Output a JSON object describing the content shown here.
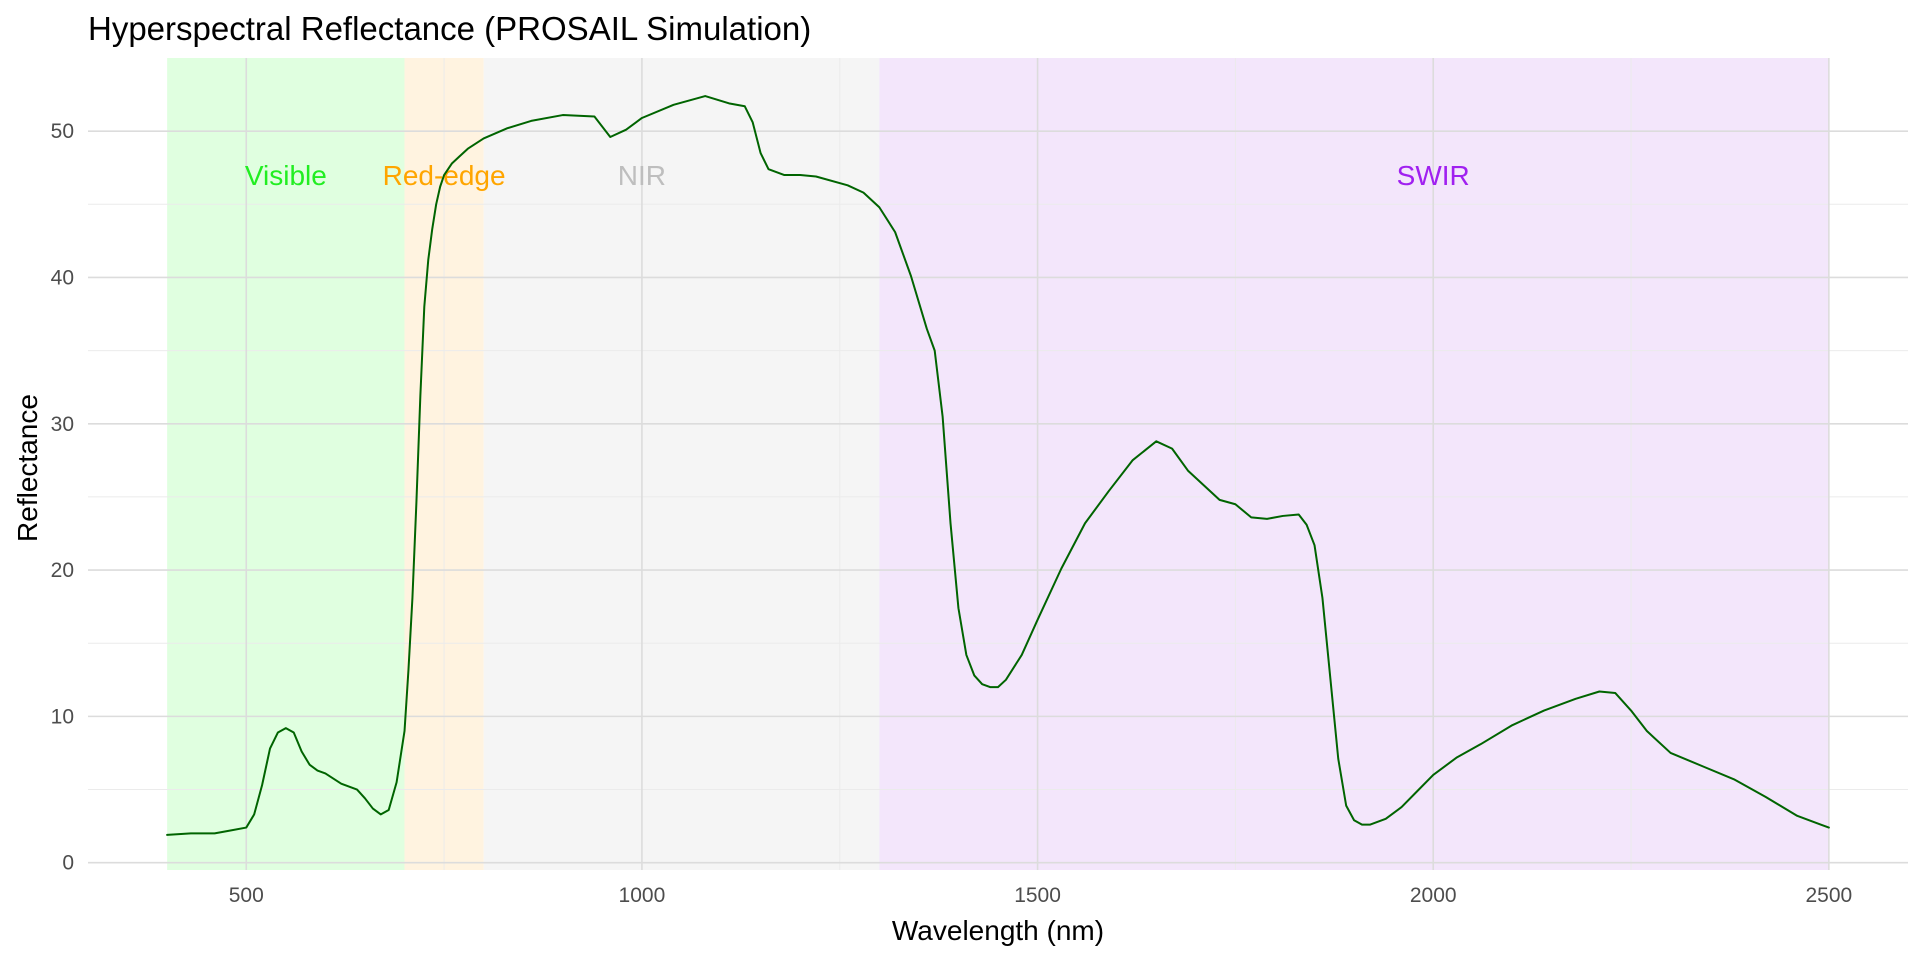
{
  "chart_data": {
    "type": "line",
    "title": "Hyperspectral Reflectance (PROSAIL Simulation)",
    "xlabel": "Wavelength (nm)",
    "ylabel": "Reflectance",
    "xlim": [
      300,
      2600
    ],
    "ylim": [
      -0.5,
      55
    ],
    "x_ticks": [
      500,
      1000,
      1500,
      2000,
      2500
    ],
    "y_ticks": [
      0,
      10,
      20,
      30,
      40,
      50
    ],
    "grid": true,
    "regions": [
      {
        "label": "Visible",
        "x_start": 400,
        "x_end": 700,
        "fill": "#e0ffe0",
        "text_color": "#22ee22",
        "label_x": 550
      },
      {
        "label": "Red-edge",
        "x_start": 700,
        "x_end": 800,
        "fill": "#fff3e0",
        "text_color": "#ffa500",
        "label_x": 750
      },
      {
        "label": "NIR",
        "x_start": 800,
        "x_end": 1300,
        "fill": "#f5f5f5",
        "text_color": "#bebebe",
        "label_x": 1000
      },
      {
        "label": "SWIR",
        "x_start": 1300,
        "x_end": 2500,
        "fill": "#f3e6fb",
        "text_color": "#a020f0",
        "label_x": 2000
      }
    ],
    "region_label_y": 47,
    "series": [
      {
        "color": "#006400",
        "x": [
          400,
          430,
          460,
          480,
          500,
          510,
          520,
          530,
          540,
          550,
          560,
          570,
          580,
          590,
          600,
          620,
          640,
          650,
          660,
          670,
          680,
          690,
          700,
          705,
          710,
          715,
          720,
          725,
          730,
          735,
          740,
          745,
          750,
          760,
          770,
          780,
          800,
          830,
          860,
          900,
          940,
          960,
          980,
          1000,
          1040,
          1080,
          1110,
          1130,
          1140,
          1150,
          1160,
          1180,
          1200,
          1220,
          1260,
          1280,
          1300,
          1320,
          1340,
          1360,
          1370,
          1380,
          1390,
          1400,
          1410,
          1420,
          1430,
          1440,
          1450,
          1460,
          1480,
          1500,
          1530,
          1560,
          1590,
          1620,
          1650,
          1670,
          1690,
          1710,
          1730,
          1750,
          1770,
          1790,
          1810,
          1830,
          1840,
          1850,
          1860,
          1870,
          1880,
          1890,
          1900,
          1910,
          1920,
          1940,
          1960,
          1980,
          2000,
          2030,
          2060,
          2100,
          2140,
          2180,
          2210,
          2230,
          2250,
          2270,
          2300,
          2340,
          2380,
          2420,
          2460,
          2490,
          2500
        ],
        "y": [
          1.9,
          2.0,
          2.0,
          2.2,
          2.4,
          3.3,
          5.3,
          7.8,
          8.9,
          9.2,
          8.9,
          7.6,
          6.7,
          6.3,
          6.1,
          5.4,
          5.0,
          4.4,
          3.7,
          3.3,
          3.6,
          5.5,
          9.0,
          13.2,
          18.1,
          24.6,
          31.9,
          38.0,
          41.2,
          43.3,
          45.0,
          46.2,
          47.0,
          47.8,
          48.3,
          48.8,
          49.5,
          50.2,
          50.7,
          51.1,
          51.0,
          49.6,
          50.1,
          50.9,
          51.8,
          52.4,
          51.9,
          51.7,
          50.6,
          48.5,
          47.4,
          47.0,
          47.0,
          46.9,
          46.3,
          45.8,
          44.8,
          43.1,
          40.1,
          36.5,
          35.0,
          30.5,
          23.2,
          17.4,
          14.2,
          12.8,
          12.2,
          12.0,
          12.0,
          12.5,
          14.2,
          16.6,
          20.1,
          23.2,
          25.4,
          27.5,
          28.8,
          28.3,
          26.8,
          25.8,
          24.8,
          24.5,
          23.6,
          23.5,
          23.7,
          23.8,
          23.1,
          21.7,
          18.1,
          12.6,
          7.1,
          3.9,
          2.9,
          2.6,
          2.6,
          3.0,
          3.8,
          4.9,
          6.0,
          7.2,
          8.1,
          9.4,
          10.4,
          11.2,
          11.7,
          11.6,
          10.4,
          9.0,
          7.5,
          6.6,
          5.7,
          4.5,
          3.2,
          2.6,
          2.4
        ]
      }
    ]
  }
}
